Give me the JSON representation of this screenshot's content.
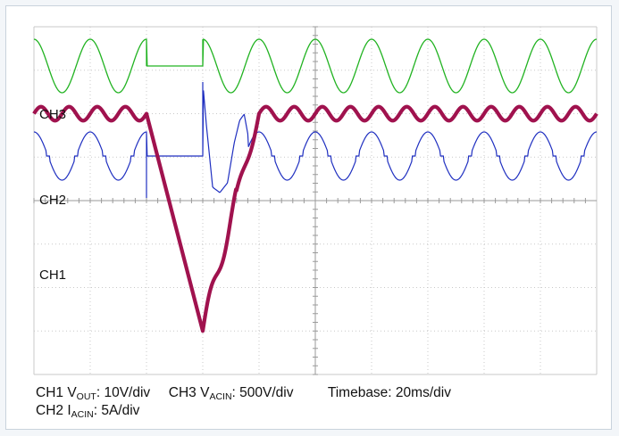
{
  "channel_labels": {
    "ch3": "CH3",
    "ch2": "CH2",
    "ch1": "CH1"
  },
  "caption": {
    "ch1": {
      "name": "CH1",
      "symbol": "V",
      "sub": "OUT",
      "scale": ": 10V/div"
    },
    "ch3": {
      "name": "CH3",
      "symbol": "V",
      "sub": "ACIN",
      "scale": ": 500V/div"
    },
    "timebase": "Timebase: 20ms/div",
    "ch2": {
      "name": "CH2",
      "symbol": "I",
      "sub": "ACIN",
      "scale": ": 5A/div"
    }
  },
  "colors": {
    "ch3": "#22b322",
    "ch2": "#1f2fc0",
    "ch1": "#a0124e",
    "grid": "#c8c8c8",
    "background": "#ffffff"
  },
  "chart_data": {
    "type": "line",
    "title": "",
    "grid": true,
    "xlim": [
      0,
      200
    ],
    "x_unit": "ms",
    "x_divisions": 10,
    "y_divisions": 8,
    "series": [
      {
        "name": "CH3",
        "period_ms": 20,
        "phases": [
          {
            "x_start": 0,
            "x_end": 40,
            "shape": "sine"
          },
          {
            "x_start": 40,
            "x_end": 60,
            "shape": "flat"
          },
          {
            "x_start": 60,
            "x_end": 200,
            "shape": "sine"
          }
        ]
      },
      {
        "name": "CH2",
        "period_ms": 20,
        "phases": [
          {
            "x_start": 0,
            "x_end": 40,
            "shape": "sine with zero-crossing flats"
          },
          {
            "x_start": 40,
            "x_end": 60,
            "shape": "flat"
          },
          {
            "x_start": 60,
            "x_end": 76,
            "shape": "inrush surge"
          },
          {
            "x_start": 76,
            "x_end": 200,
            "shape": "sine with zero-crossing flats"
          }
        ]
      },
      {
        "name": "CH1",
        "ripple_period_ms": 10,
        "points": [
          [
            0,
            6.0
          ],
          [
            40,
            6.0
          ],
          [
            60,
            1.0
          ],
          [
            70,
            3.6
          ],
          [
            80,
            6.0
          ],
          [
            200,
            6.0
          ]
        ]
      }
    ]
  }
}
